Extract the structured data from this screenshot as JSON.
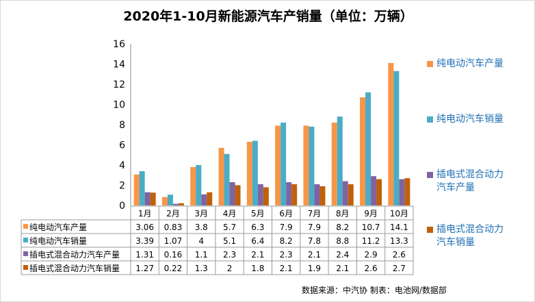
{
  "chart_data": {
    "type": "bar",
    "title": "2020年1-10月新能源汽车产销量（单位：万辆）",
    "categories": [
      "1月",
      "2月",
      "3月",
      "4月",
      "5月",
      "6月",
      "7月",
      "8月",
      "9月",
      "10月"
    ],
    "ylim": [
      0,
      16
    ],
    "yticks": [
      "0",
      "2",
      "4",
      "6",
      "8",
      "10",
      "12",
      "14",
      "16"
    ],
    "legend_position": "right",
    "data_table": true,
    "series": [
      {
        "name": "纯电动汽车产量",
        "color": "#F79646",
        "values": [
          3.06,
          0.83,
          3.8,
          5.7,
          6.3,
          7.9,
          7.9,
          8.2,
          10.7,
          14.1
        ],
        "labels": [
          "3.06",
          "0.83",
          "3.8",
          "5.7",
          "6.3",
          "7.9",
          "7.9",
          "8.2",
          "10.7",
          "14.1"
        ]
      },
      {
        "name": "纯电动汽车销量",
        "color": "#4BACC6",
        "values": [
          3.39,
          1.07,
          4,
          5.1,
          6.4,
          8.2,
          7.8,
          8.8,
          11.2,
          13.3
        ],
        "labels": [
          "3.39",
          "1.07",
          "4",
          "5.1",
          "6.4",
          "8.2",
          "7.8",
          "8.8",
          "11.2",
          "13.3"
        ]
      },
      {
        "name": "插电式混合动力汽车产量",
        "color": "#8064A2",
        "values": [
          1.31,
          0.16,
          1.1,
          2.3,
          2.1,
          2.3,
          2.1,
          2.4,
          2.9,
          2.6
        ],
        "labels": [
          "1.31",
          "0.16",
          "1.1",
          "2.3",
          "2.1",
          "2.3",
          "2.1",
          "2.4",
          "2.9",
          "2.6"
        ]
      },
      {
        "name": "插电式混合动力汽车销量",
        "color": "#C0600A",
        "values": [
          1.27,
          0.22,
          1.3,
          2,
          1.8,
          2.1,
          1.9,
          2.1,
          2.6,
          2.7
        ],
        "labels": [
          "1.27",
          "0.22",
          "1.3",
          "2",
          "1.8",
          "2.1",
          "1.9",
          "2.1",
          "2.6",
          "2.7"
        ]
      }
    ],
    "legend": [
      {
        "lines": [
          "纯电动汽车产量"
        ]
      },
      {
        "lines": [
          "纯电动汽车销量"
        ]
      },
      {
        "lines": [
          "插电式混合动力",
          "汽车产量"
        ]
      },
      {
        "lines": [
          "插电式混合动力",
          "汽车销量"
        ]
      }
    ]
  },
  "source": "数据来源：中汽协  制表：电池网/数据部"
}
